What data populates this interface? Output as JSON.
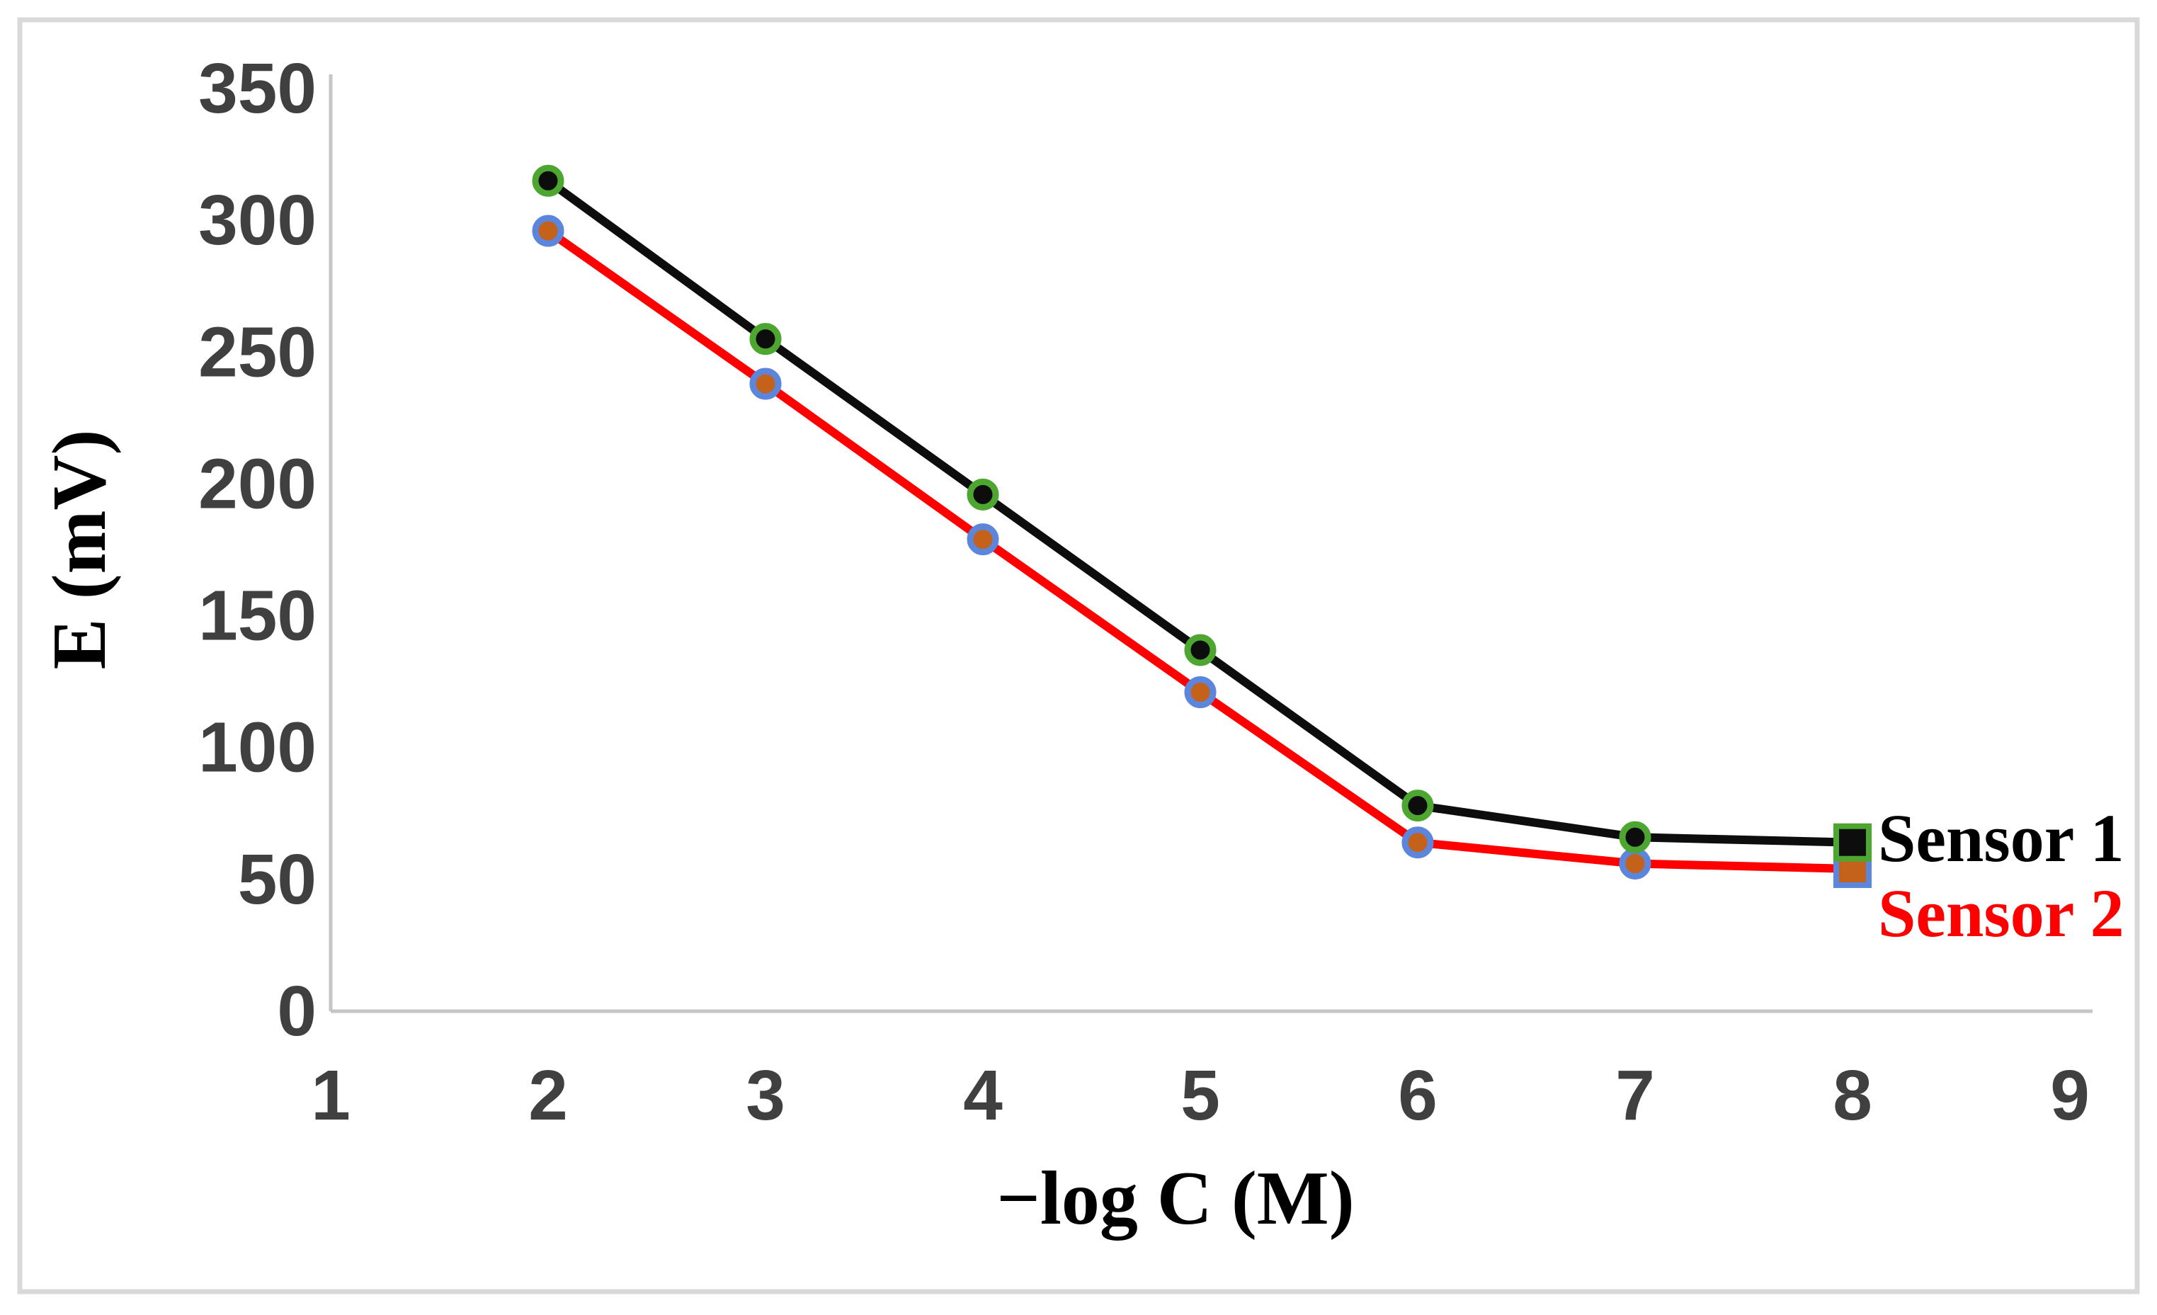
{
  "figure": {
    "background_color": "#FFFFFF",
    "frame_border_color": "#D9D9D9",
    "axis_line_color": "#C6C6C6",
    "tick_label_color": "#404040"
  },
  "chart_data": {
    "type": "line",
    "title": "",
    "xlabel": "−log C (M)",
    "ylabel": "E (mV)",
    "xlim": [
      1,
      9
    ],
    "ylim": [
      0,
      350
    ],
    "xticks": [
      1,
      2,
      3,
      4,
      5,
      6,
      7,
      8,
      9
    ],
    "yticks": [
      0,
      50,
      100,
      150,
      200,
      250,
      300,
      350
    ],
    "grid": false,
    "legend_position": "right of line ends, stacked",
    "x": [
      2,
      3,
      4,
      5,
      6,
      7,
      8
    ],
    "series": [
      {
        "name": "Sensor 1",
        "values": [
          315,
          255,
          196,
          137,
          78,
          66,
          64
        ],
        "line_color": "#0D0D0D",
        "marker": "circle",
        "last_marker": "square",
        "marker_fill": "#0D0D0D",
        "marker_outline": "#4CA62F",
        "label_color": "#000000"
      },
      {
        "name": "Sensor 2",
        "values": [
          296,
          238,
          179,
          121,
          64,
          56,
          54
        ],
        "line_color": "#FF0000",
        "marker": "circle",
        "last_marker": "square",
        "marker_fill": "#C4611B",
        "marker_outline": "#5B86DC",
        "label_color": "#FF0000"
      }
    ]
  }
}
